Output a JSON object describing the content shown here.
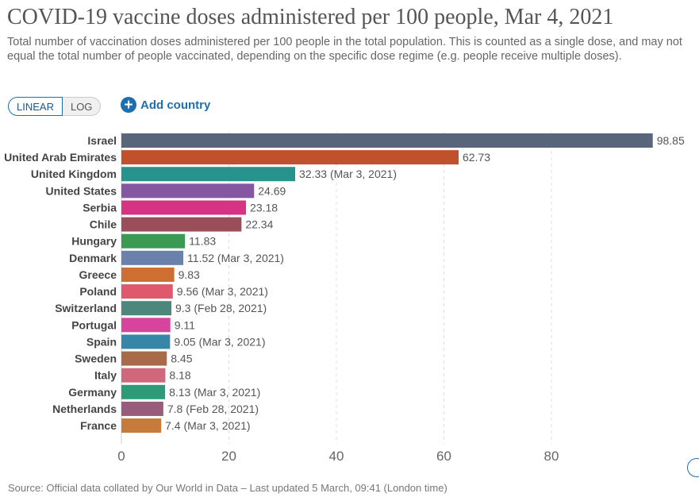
{
  "header": {
    "title": "COVID-19 vaccine doses administered per 100 people, Mar 4, 2021",
    "subtitle": "Total number of vaccination doses administered per 100 people in the total population. This is counted as a single dose, and may not equal the total number of people vaccinated, depending on the specific dose regime (e.g. people receive multiple doses)."
  },
  "controls": {
    "linear_label": "LINEAR",
    "log_label": "LOG",
    "add_country_label": "Add country",
    "add_icon": "plus-circle-icon",
    "accent": "#1d6fb0"
  },
  "chart_data": {
    "type": "bar",
    "orientation": "horizontal",
    "categories": [
      "Israel",
      "United Arab Emirates",
      "United Kingdom",
      "United States",
      "Serbia",
      "Chile",
      "Hungary",
      "Denmark",
      "Greece",
      "Poland",
      "Switzerland",
      "Portugal",
      "Spain",
      "Sweden",
      "Italy",
      "Germany",
      "Netherlands",
      "France"
    ],
    "values": [
      98.85,
      62.73,
      32.33,
      24.69,
      23.18,
      22.34,
      11.83,
      11.52,
      9.83,
      9.56,
      9.3,
      9.11,
      9.05,
      8.45,
      8.18,
      8.13,
      7.8,
      7.4
    ],
    "value_labels": [
      "98.85",
      "62.73",
      "32.33 (Mar 3, 2021)",
      "24.69",
      "23.18",
      "22.34",
      "11.83",
      "11.52 (Mar 3, 2021)",
      "9.83",
      "9.56 (Mar 3, 2021)",
      "9.3 (Feb 28, 2021)",
      "9.11",
      "9.05 (Mar 3, 2021)",
      "8.45",
      "8.18",
      "8.13 (Mar 3, 2021)",
      "7.8 (Feb 28, 2021)",
      "7.4 (Mar 3, 2021)"
    ],
    "colors": [
      "#59657a",
      "#c0512c",
      "#26948c",
      "#8557a3",
      "#d63384",
      "#9a4f58",
      "#3a9a52",
      "#6a81ac",
      "#cd6e33",
      "#e0586b",
      "#4b877a",
      "#d6449e",
      "#3786a8",
      "#a86a49",
      "#d0677b",
      "#2f9a78",
      "#985b7a",
      "#c77b3a"
    ],
    "xticks": [
      "0",
      "20",
      "40",
      "60",
      "80"
    ],
    "xlim": [
      0,
      98.85
    ],
    "scale": "linear",
    "grid": "vertical dashed",
    "title": "",
    "xlabel": "",
    "ylabel": ""
  },
  "footer": {
    "source": "Source: Official data collated by Our World in Data – Last updated 5 March, 09:41 (London time)"
  }
}
